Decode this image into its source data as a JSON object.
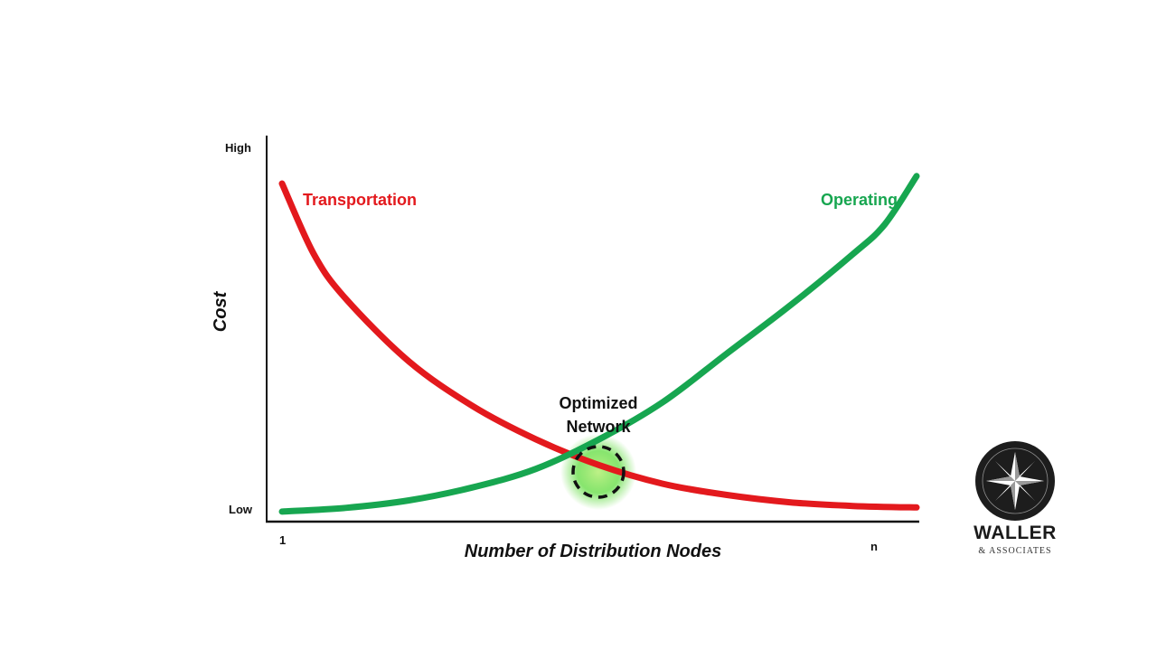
{
  "chart_data": {
    "type": "line",
    "title": "",
    "xlabel": "Number of Distribution Nodes",
    "ylabel": "Cost",
    "x_ticks": [
      "1",
      "n"
    ],
    "y_ticks": [
      "Low",
      "High"
    ],
    "ylim": [
      0,
      100
    ],
    "xlim": [
      0,
      100
    ],
    "grid": false,
    "legend": "none",
    "x": [
      0,
      10,
      20,
      30,
      40,
      50,
      60,
      70,
      80,
      90,
      95,
      100
    ],
    "series": [
      {
        "name": "Transportation",
        "color": "#e3191d",
        "x": [
          0,
          5,
          10,
          20,
          30,
          40,
          50,
          60,
          70,
          80,
          90,
          100
        ],
        "values": [
          90,
          71,
          59,
          42,
          30,
          21,
          14,
          9,
          6,
          4,
          3,
          2.6
        ]
      },
      {
        "name": "Operating",
        "color": "#17a650",
        "x": [
          0,
          10,
          20,
          30,
          40,
          50,
          60,
          70,
          80,
          90,
          95,
          100
        ],
        "values": [
          1.5,
          2.5,
          4.5,
          8,
          13,
          21,
          31,
          44,
          57,
          71,
          79,
          92
        ]
      }
    ],
    "annotations": [
      {
        "text": "Optimized Network",
        "lines": [
          "Optimized",
          "Network"
        ],
        "x": 50,
        "y": 12.5
      }
    ]
  },
  "logo": {
    "name": "WALLER",
    "sub": "& ASSOCIATES",
    "icon": "compass-star-icon"
  }
}
